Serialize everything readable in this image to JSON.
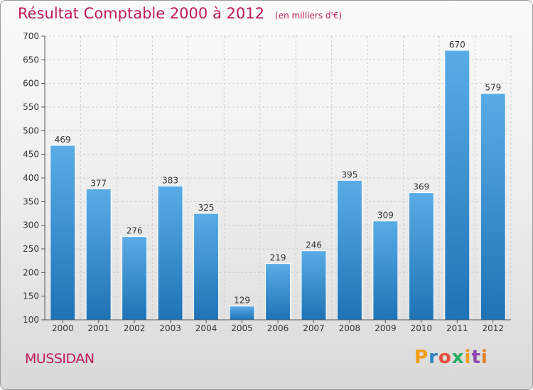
{
  "header": {
    "title": "Résultat Comptable 2000 à 2012",
    "subtitle": "(en milliers d'€)"
  },
  "footer": {
    "city": "MUSSIDAN",
    "logo_text": "Proxiti",
    "logo_colors": [
      "#f39c12",
      "#2e86c1",
      "#e74c3c",
      "#27ae60",
      "#f39c12",
      "#8e44ad",
      "#e67e22"
    ]
  },
  "colors": {
    "title": "#c0185b",
    "bar_top": "#5aace6",
    "bar_bottom": "#1f73b5",
    "axis": "#555555",
    "grid": "#cfcfcf"
  },
  "chart_data": {
    "type": "bar",
    "categories": [
      "2000",
      "2001",
      "2002",
      "2003",
      "2004",
      "2005",
      "2006",
      "2007",
      "2008",
      "2009",
      "2010",
      "2011",
      "2012"
    ],
    "values": [
      469,
      377,
      276,
      383,
      325,
      129,
      219,
      246,
      395,
      309,
      369,
      670,
      579
    ],
    "ylim": [
      100,
      700
    ],
    "yticks": [
      100,
      150,
      200,
      250,
      300,
      350,
      400,
      450,
      500,
      550,
      600,
      650,
      700
    ],
    "grid": true,
    "xlabel": "",
    "ylabel": ""
  }
}
